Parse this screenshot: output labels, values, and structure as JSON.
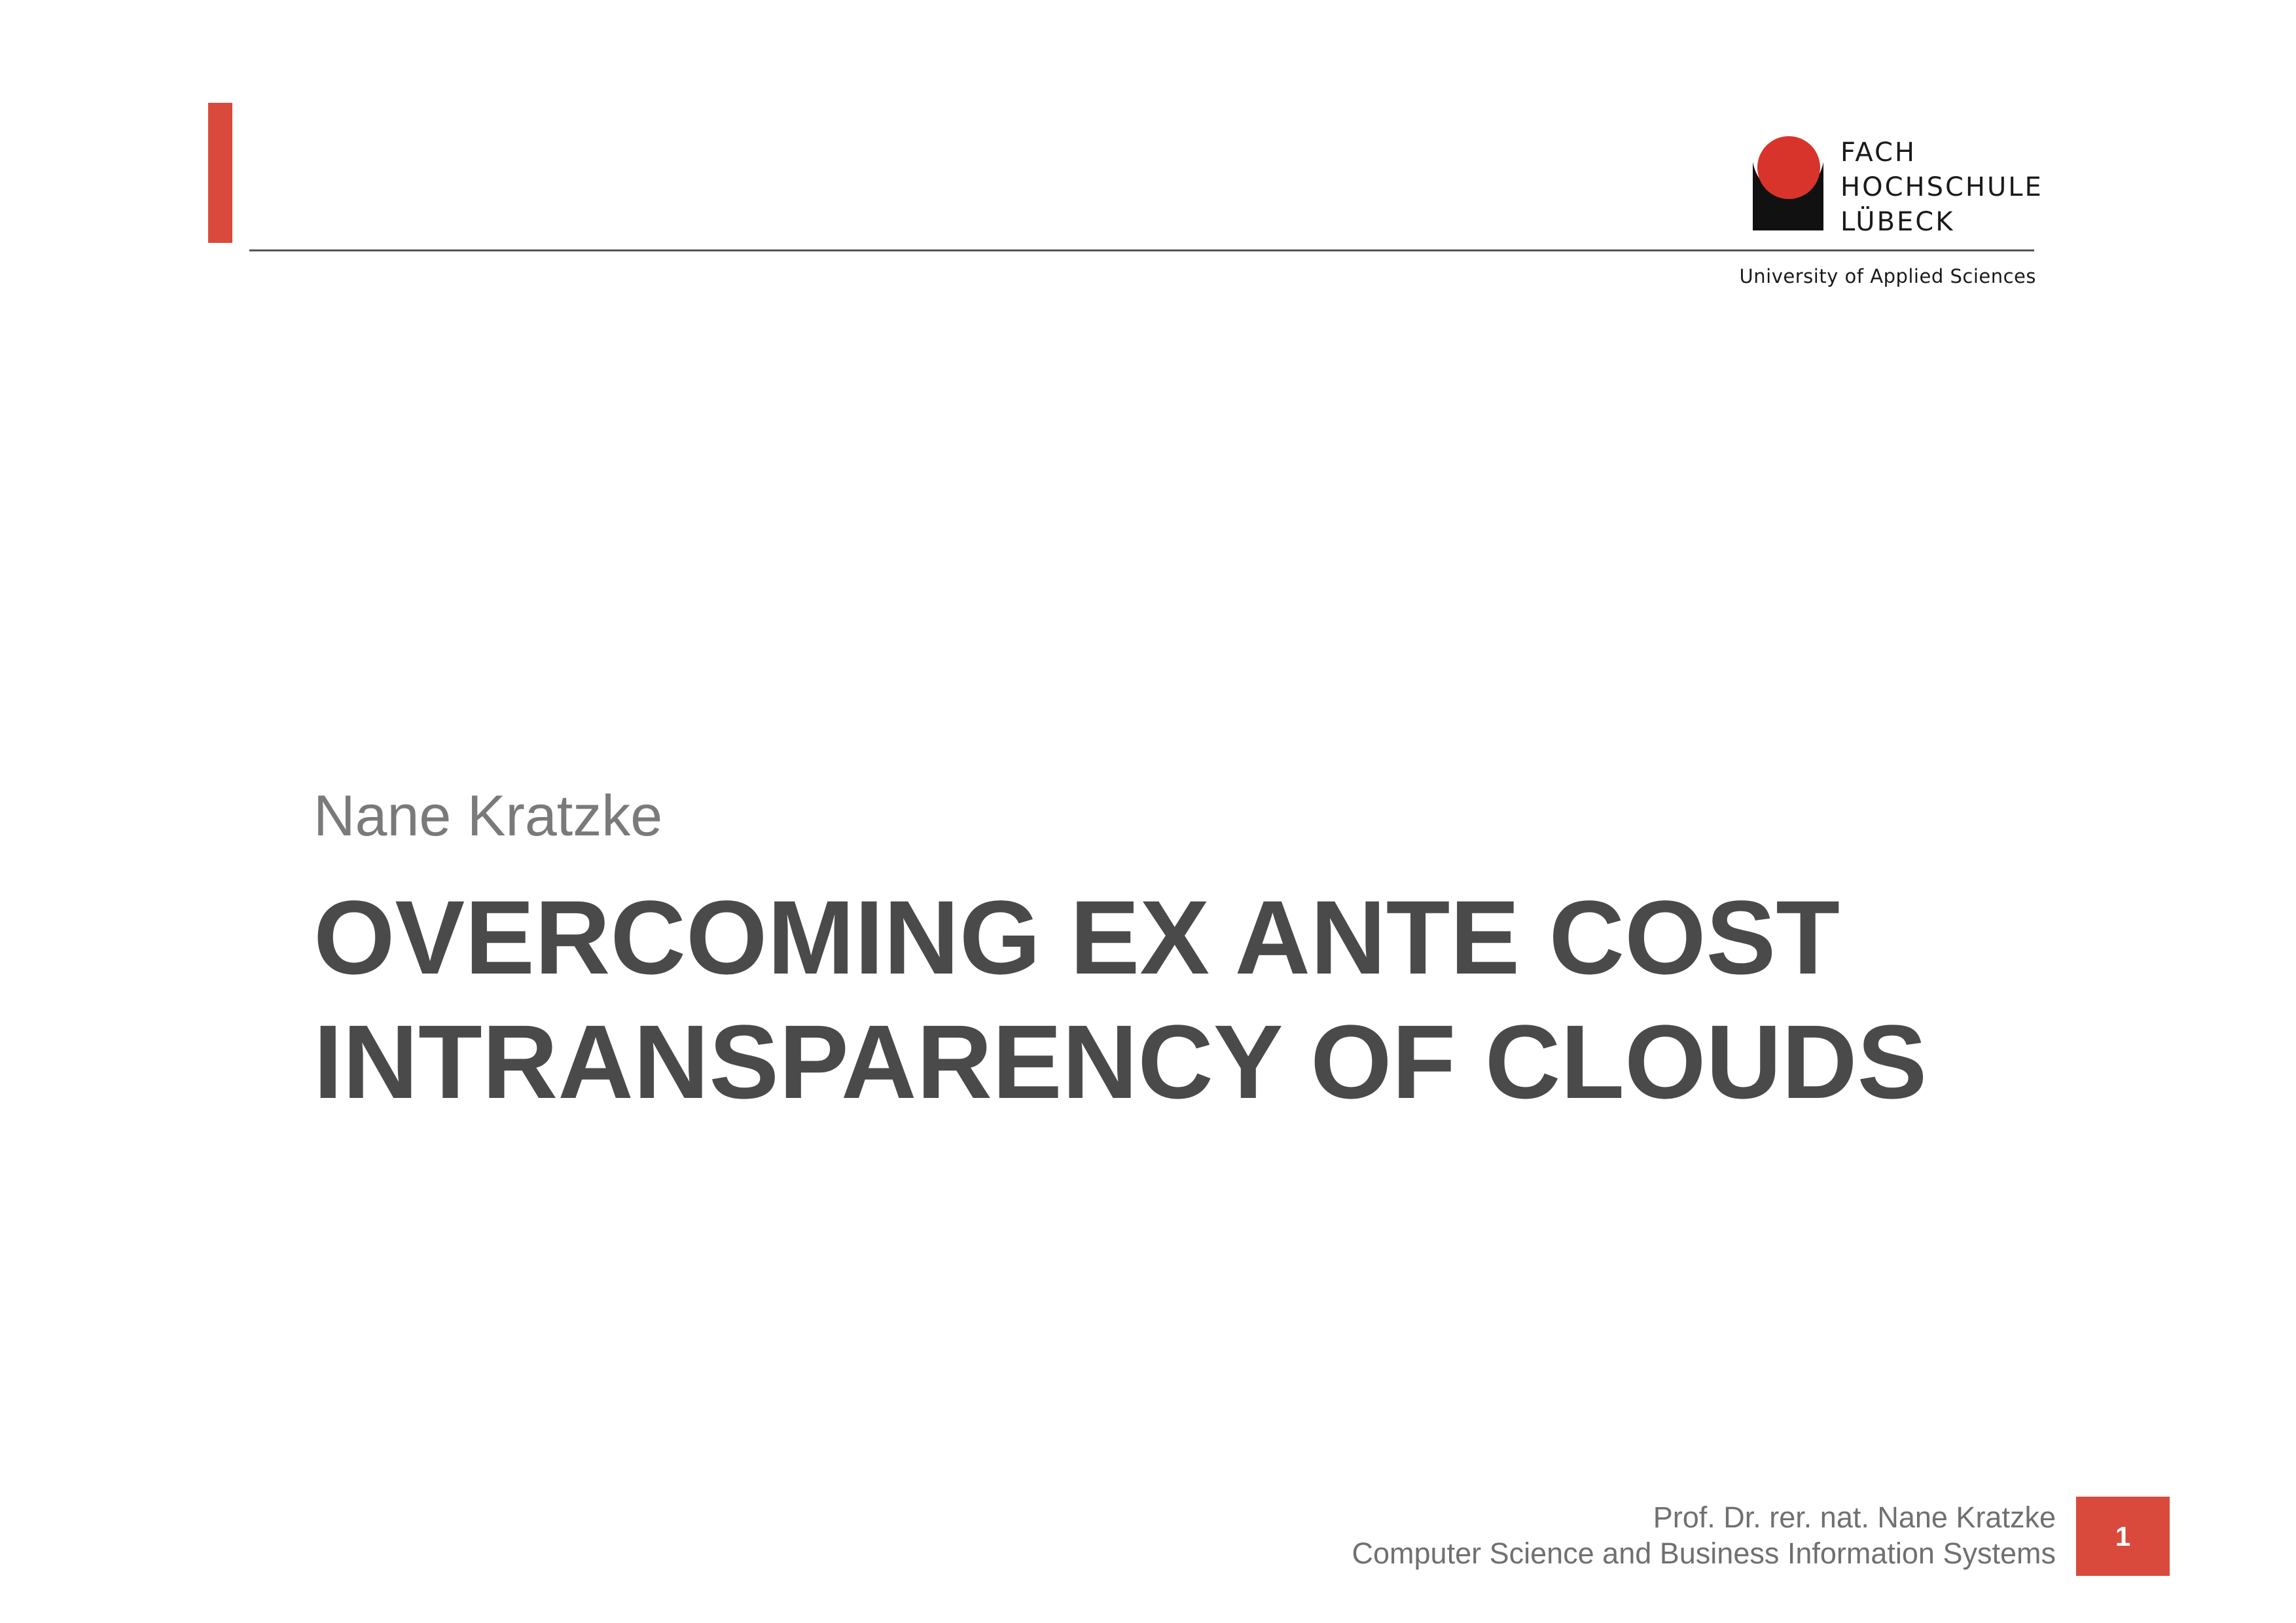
{
  "header": {
    "logo": {
      "lines": [
        "FACH",
        "HOCHSCHULE",
        "LÜBECK"
      ],
      "subline": "University of Applied Sciences",
      "emblem_icon": "fh-luebeck-emblem-icon"
    }
  },
  "main": {
    "author": "Nane Kratzke",
    "title_lines": [
      "OVERCOMING EX ANTE COST",
      "INTRANSPARENCY OF CLOUDS"
    ]
  },
  "footer": {
    "presenter": "Prof. Dr. rer. nat. Nane Kratzke",
    "department": "Computer Science and Business Information Systems",
    "page_number": "1"
  },
  "colors": {
    "accent": "#d94a3c",
    "title_text": "#4a4a4a",
    "author_text": "#7a7a7a",
    "footer_text": "#707070"
  }
}
